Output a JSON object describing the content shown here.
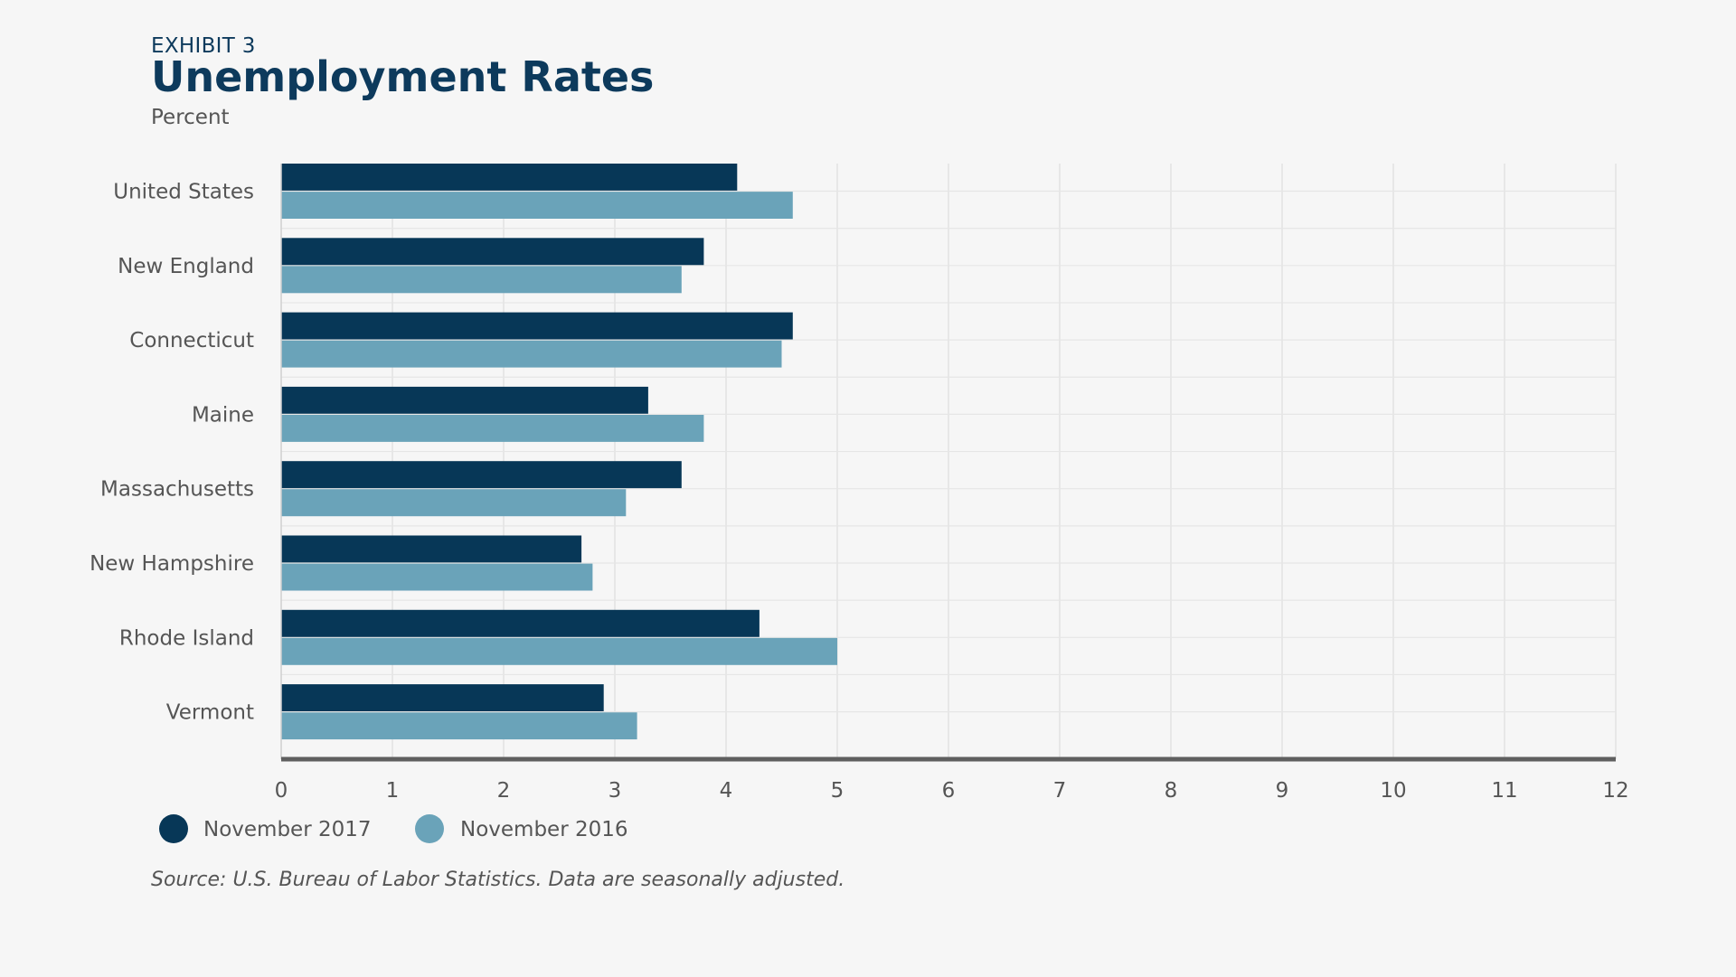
{
  "exhibit_label": "EXHIBIT 3",
  "source_note": "Source: U.S. Bureau of Labor Statistics. Data are seasonally adjusted.",
  "chart_data": {
    "type": "bar",
    "orientation": "horizontal",
    "title": "Unemployment Rates",
    "subtitle": "Percent",
    "categories": [
      "United States",
      "New England",
      "Connecticut",
      "Maine",
      "Massachusetts",
      "New Hampshire",
      "Rhode Island",
      "Vermont"
    ],
    "series": [
      {
        "name": "November 2017",
        "color": "#073757",
        "values": [
          4.1,
          3.8,
          4.6,
          3.3,
          3.6,
          2.7,
          4.3,
          2.9
        ]
      },
      {
        "name": "November 2016",
        "color": "#6aa3b9",
        "values": [
          4.6,
          3.6,
          4.5,
          3.8,
          3.1,
          2.8,
          5.0,
          3.2
        ]
      }
    ],
    "xlim": [
      0,
      12
    ],
    "xticks": [
      0,
      1,
      2,
      3,
      4,
      5,
      6,
      7,
      8,
      9,
      10,
      11,
      12
    ],
    "grid": true,
    "legend_position": "bottom-left"
  }
}
